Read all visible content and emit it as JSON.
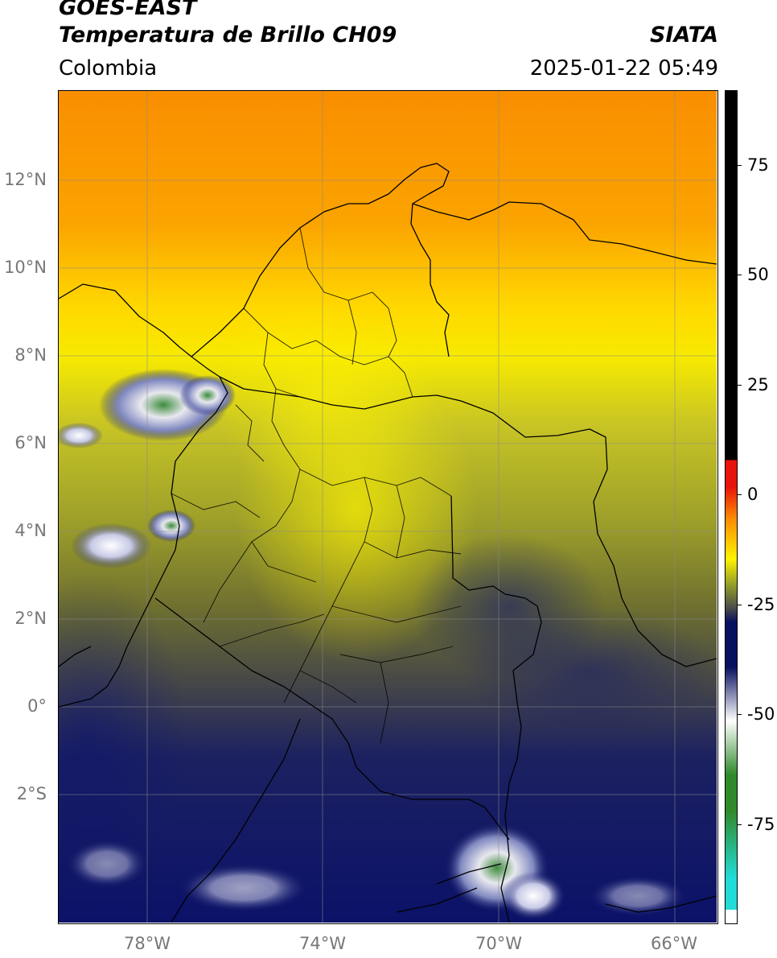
{
  "header": {
    "satellite": "GOES-EAST",
    "product": "Temperatura de Brillo CH09",
    "agency": "SIATA",
    "region": "Colombia",
    "datetime": "2025-01-22 05:49"
  },
  "map": {
    "lat_ticks": [
      "12°N",
      "10°N",
      "8°N",
      "6°N",
      "4°N",
      "2°N",
      "0°",
      "2°S"
    ],
    "lon_ticks": [
      "78°W",
      "74°W",
      "70°W",
      "66°W"
    ],
    "extent": {
      "lon_min": -80,
      "lon_max": -65,
      "lat_min": -5,
      "lat_max": 14
    },
    "grid": true
  },
  "colorbar": {
    "ticks": [
      "75",
      "50",
      "25",
      "0",
      "-25",
      "-50",
      "-75"
    ],
    "range": [
      -95,
      90
    ],
    "colors": {
      "warm_black": "#000000",
      "red": "#e8130a",
      "orange": "#fb8b00",
      "yellow": "#fff200",
      "olive": "#8f9a2a",
      "gray": "#4a4a4a",
      "navy": "#081060",
      "white": "#ffffff",
      "green": "#2f8a2a",
      "cyan": "#21dcd8"
    }
  }
}
